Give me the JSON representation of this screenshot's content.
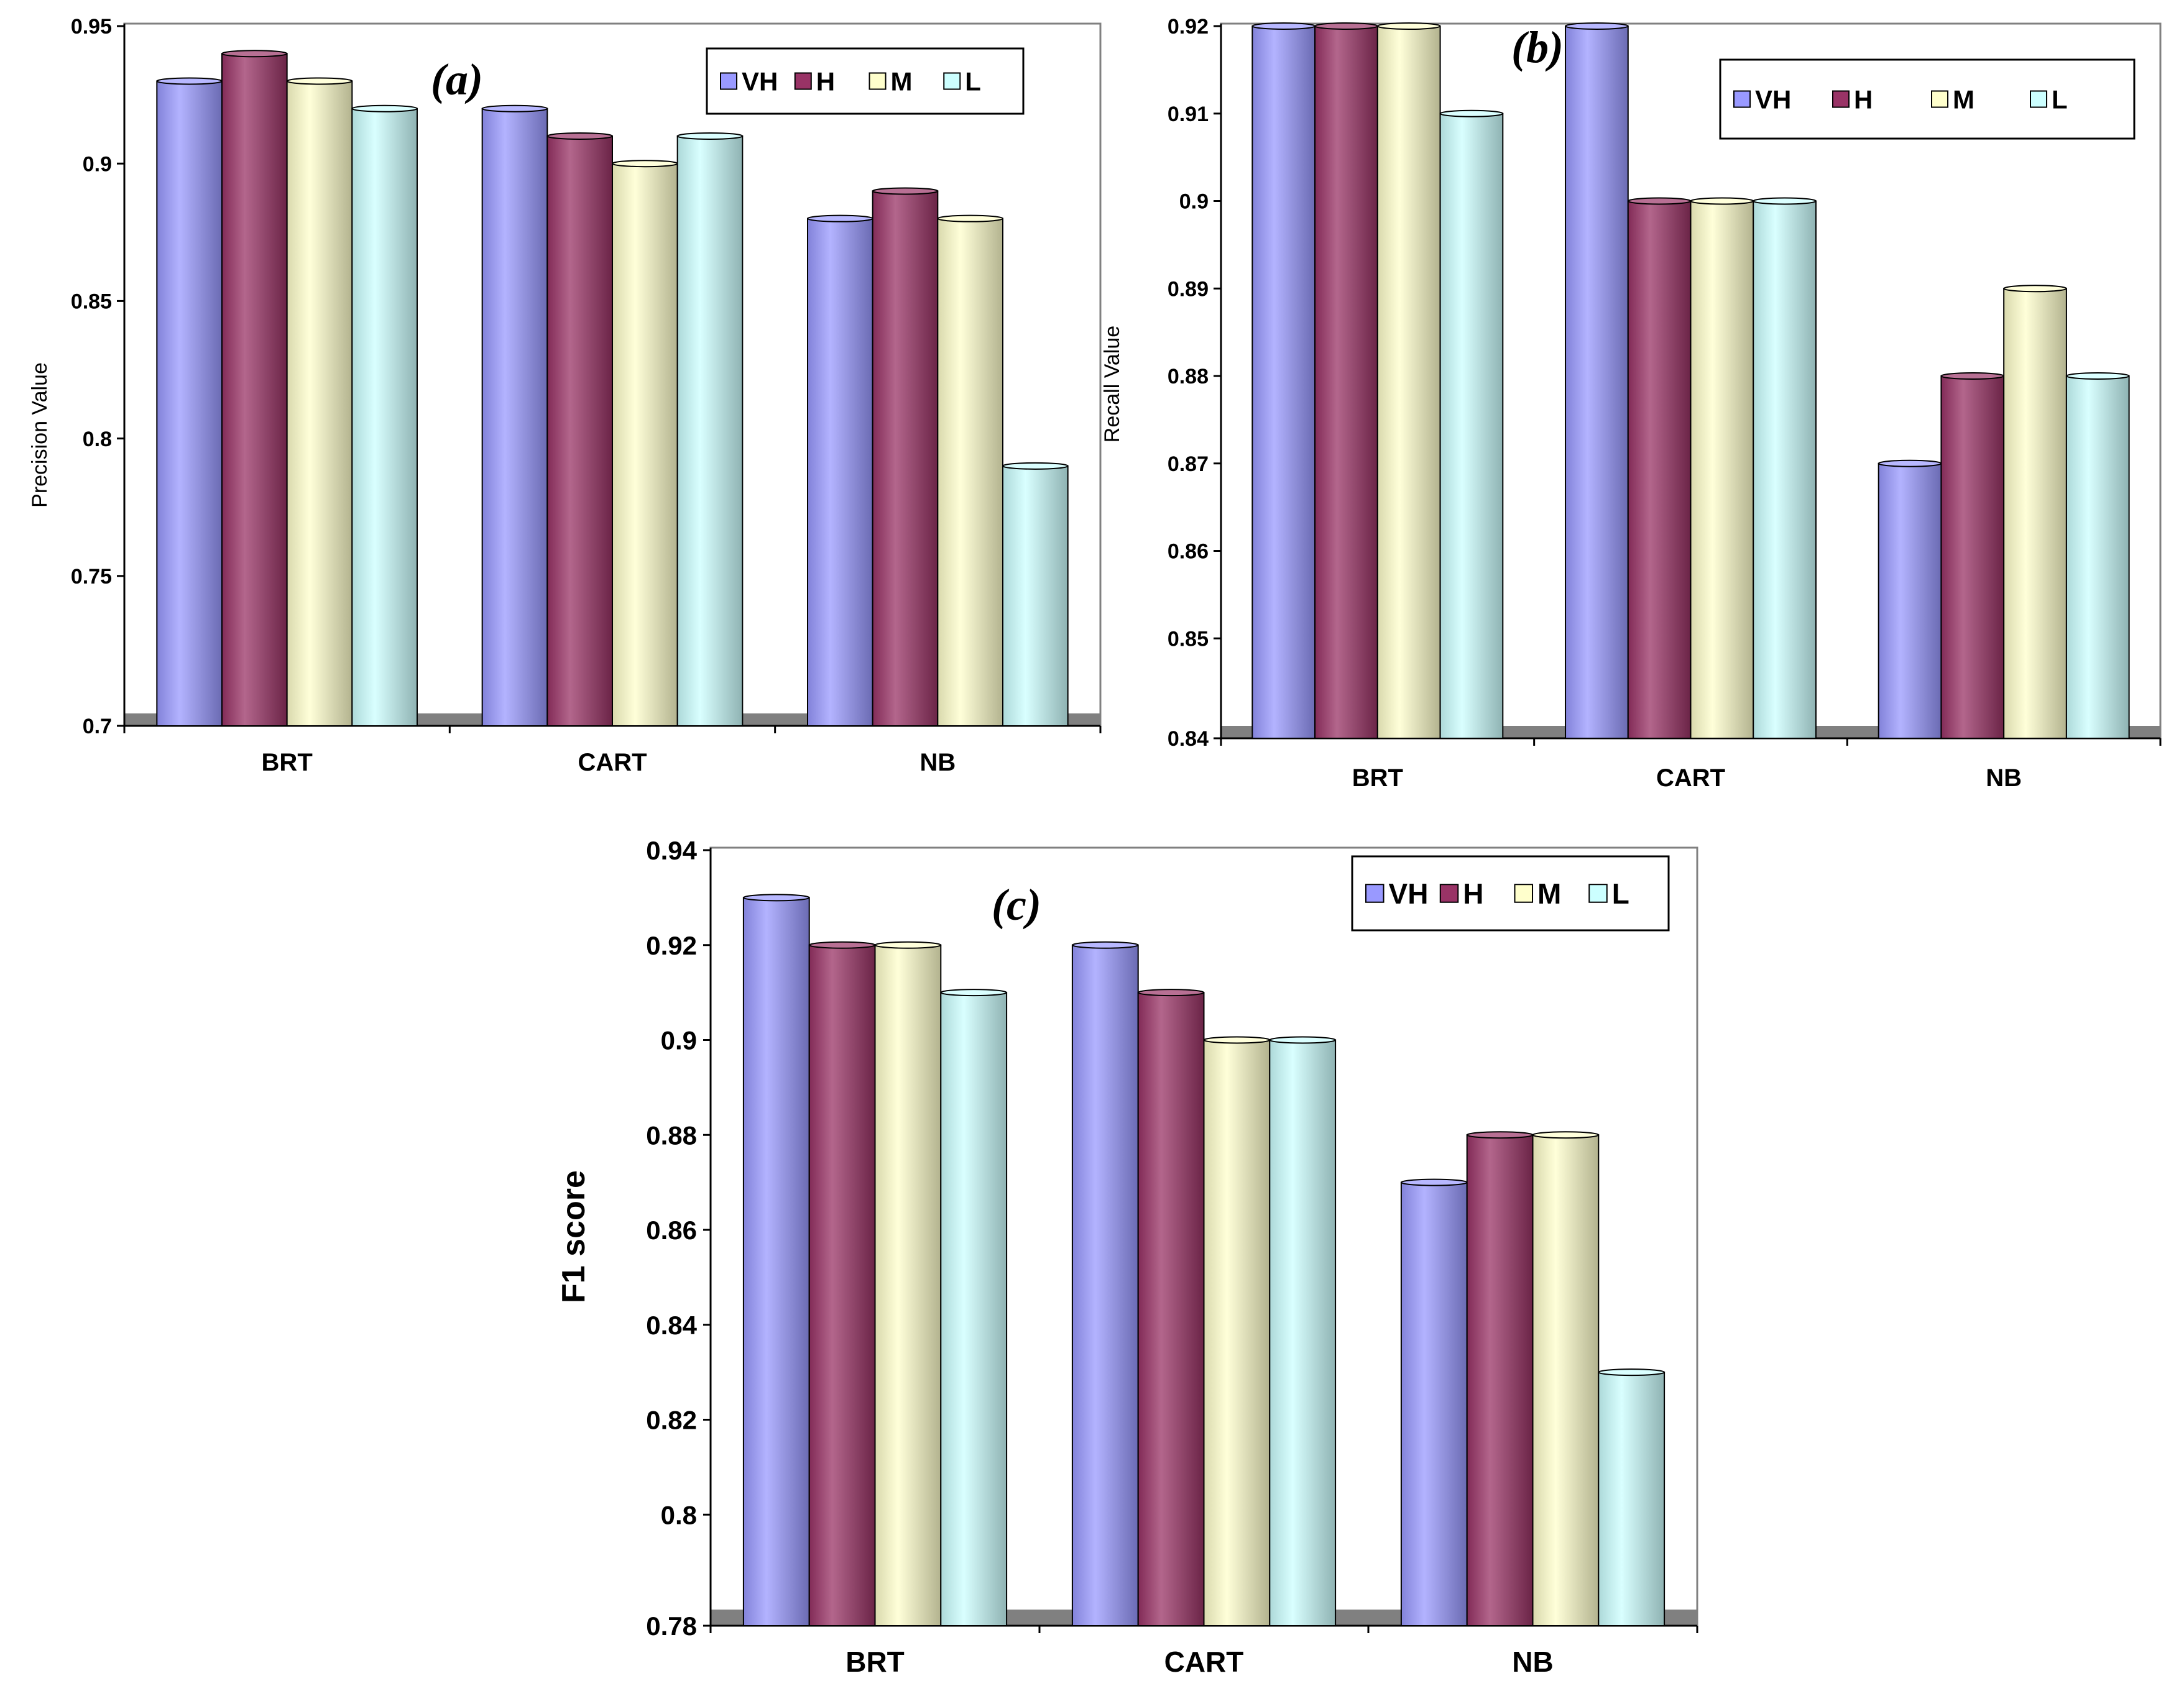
{
  "colors": {
    "VH": "#9999ff",
    "H": "#993366",
    "M": "#ffffcc",
    "L": "#ccffff",
    "floor": "#808080",
    "frame": "#808080"
  },
  "chart_data": [
    {
      "id": "a",
      "type": "bar",
      "title": "(a)",
      "xlabel": "",
      "ylabel": "Precision Value",
      "categories": [
        "BRT",
        "CART",
        "NB"
      ],
      "series": [
        {
          "name": "VH",
          "values": [
            0.93,
            0.92,
            0.88
          ]
        },
        {
          "name": "H",
          "values": [
            0.94,
            0.91,
            0.89
          ]
        },
        {
          "name": "M",
          "values": [
            0.93,
            0.9,
            0.88
          ]
        },
        {
          "name": "L",
          "values": [
            0.92,
            0.91,
            0.79
          ]
        }
      ],
      "ylim": [
        0.7,
        0.95
      ],
      "yticks": [
        0.7,
        0.75,
        0.8,
        0.85,
        0.9,
        0.95
      ],
      "ytick_labels": [
        "0.7",
        "0.75",
        "0.8",
        "0.85",
        "0.9",
        "0.95"
      ],
      "legend": [
        "VH",
        "H",
        "M",
        "L"
      ],
      "legend_position": "top-right",
      "grid": false
    },
    {
      "id": "b",
      "type": "bar",
      "title": "(b)",
      "xlabel": "",
      "ylabel": "Recall Value",
      "categories": [
        "BRT",
        "CART",
        "NB"
      ],
      "series": [
        {
          "name": "VH",
          "values": [
            0.92,
            0.92,
            0.87
          ]
        },
        {
          "name": "H",
          "values": [
            0.92,
            0.9,
            0.88
          ]
        },
        {
          "name": "M",
          "values": [
            0.92,
            0.9,
            0.89
          ]
        },
        {
          "name": "L",
          "values": [
            0.91,
            0.9,
            0.88
          ]
        }
      ],
      "ylim": [
        0.84,
        0.92
      ],
      "yticks": [
        0.84,
        0.85,
        0.86,
        0.87,
        0.88,
        0.89,
        0.9,
        0.91,
        0.92
      ],
      "ytick_labels": [
        "0.84",
        "0.85",
        "0.86",
        "0.87",
        "0.88",
        "0.89",
        "0.9",
        "0.91",
        "0.92"
      ],
      "legend": [
        "VH",
        "H",
        "M",
        "L"
      ],
      "legend_position": "top-right",
      "grid": false
    },
    {
      "id": "c",
      "type": "bar",
      "title": "(c)",
      "xlabel": "",
      "ylabel": "F1 score",
      "categories": [
        "BRT",
        "CART",
        "NB"
      ],
      "series": [
        {
          "name": "VH",
          "values": [
            0.93,
            0.92,
            0.87
          ]
        },
        {
          "name": "H",
          "values": [
            0.92,
            0.91,
            0.88
          ]
        },
        {
          "name": "M",
          "values": [
            0.92,
            0.9,
            0.88
          ]
        },
        {
          "name": "L",
          "values": [
            0.91,
            0.9,
            0.83
          ]
        }
      ],
      "ylim": [
        0.78,
        0.94
      ],
      "yticks": [
        0.78,
        0.8,
        0.82,
        0.84,
        0.86,
        0.88,
        0.9,
        0.92,
        0.94
      ],
      "ytick_labels": [
        "0.78",
        "0.8",
        "0.82",
        "0.84",
        "0.86",
        "0.88",
        "0.9",
        "0.92",
        "0.94"
      ],
      "legend": [
        "VH",
        "H",
        "M",
        "L"
      ],
      "legend_position": "top-right",
      "grid": false
    }
  ]
}
